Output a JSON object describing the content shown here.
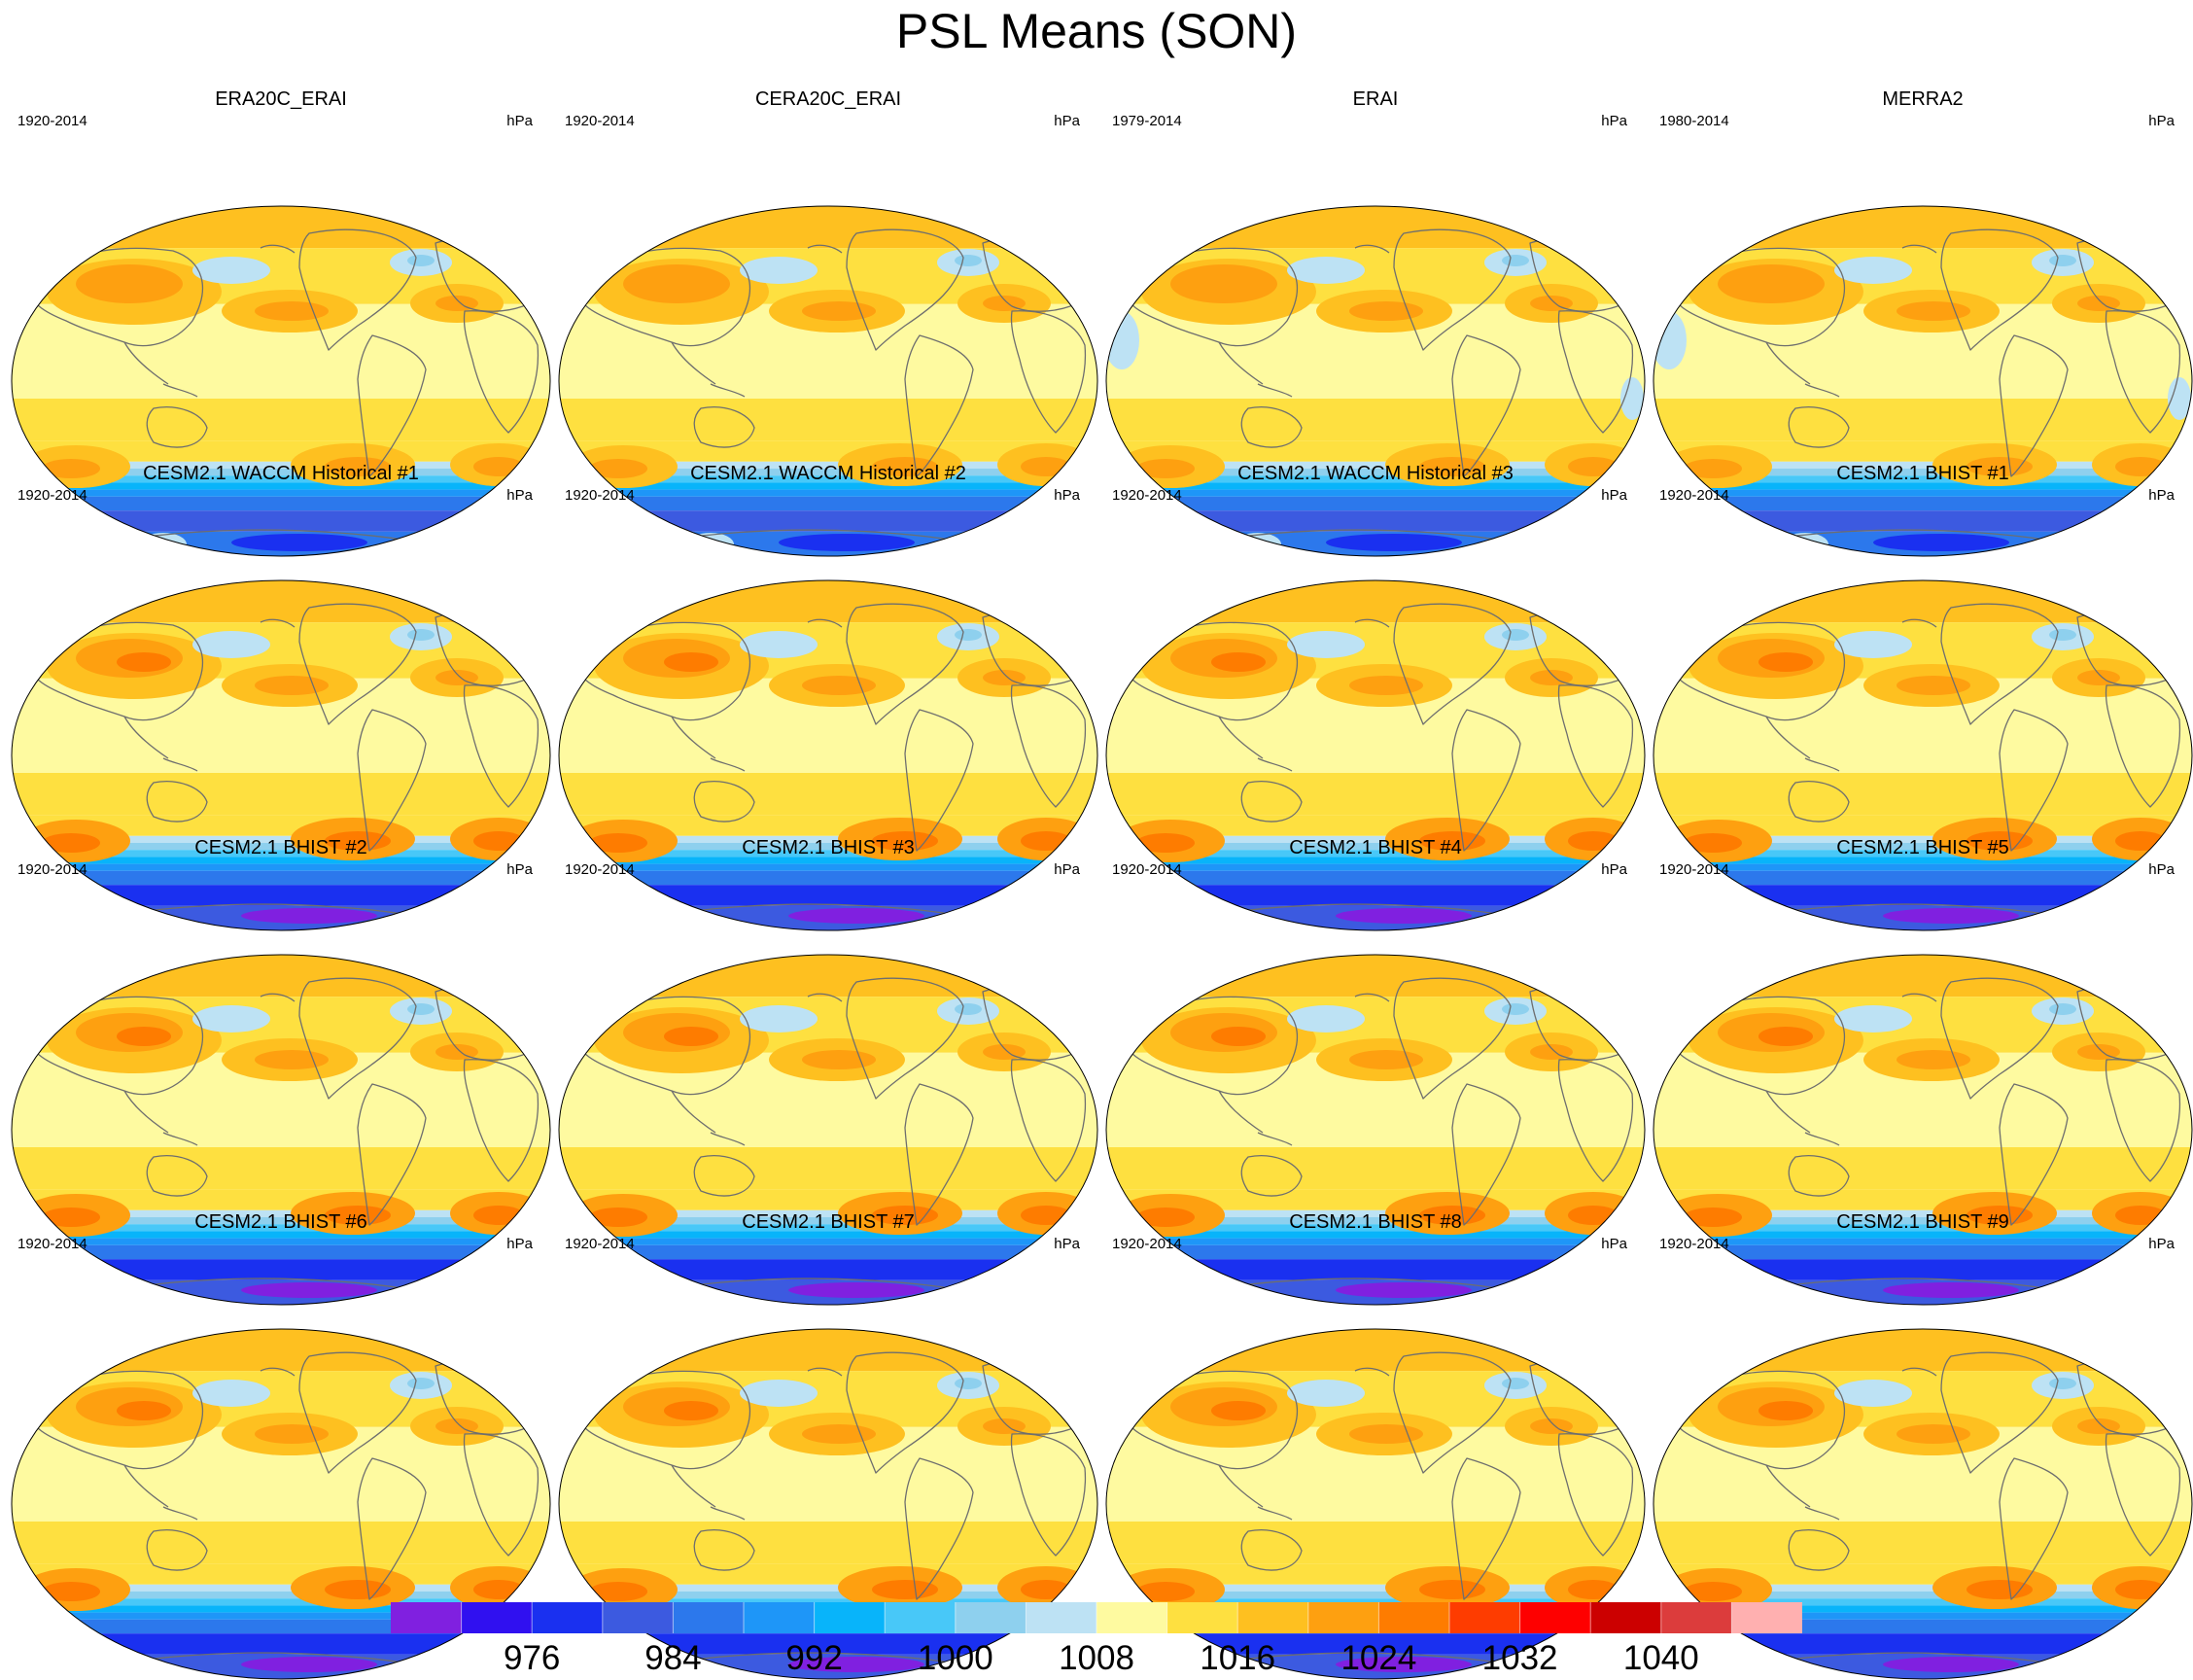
{
  "title": "PSL Means (SON)",
  "units": "hPa",
  "panels": [
    {
      "name": "ERA20C_ERAI",
      "period": "1920-2014",
      "kind": "obs_a"
    },
    {
      "name": "CERA20C_ERAI",
      "period": "1920-2014",
      "kind": "obs_a"
    },
    {
      "name": "ERAI",
      "period": "1979-2014",
      "kind": "obs_b"
    },
    {
      "name": "MERRA2",
      "period": "1980-2014",
      "kind": "obs_b"
    },
    {
      "name": "CESM2.1 WACCM Historical #1",
      "period": "1920-2014",
      "kind": "model"
    },
    {
      "name": "CESM2.1 WACCM Historical #2",
      "period": "1920-2014",
      "kind": "model"
    },
    {
      "name": "CESM2.1 WACCM Historical #3",
      "period": "1920-2014",
      "kind": "model"
    },
    {
      "name": "CESM2.1 BHIST #1",
      "period": "1920-2014",
      "kind": "model"
    },
    {
      "name": "CESM2.1 BHIST #2",
      "period": "1920-2014",
      "kind": "model"
    },
    {
      "name": "CESM2.1 BHIST #3",
      "period": "1920-2014",
      "kind": "model"
    },
    {
      "name": "CESM2.1 BHIST #4",
      "period": "1920-2014",
      "kind": "model"
    },
    {
      "name": "CESM2.1 BHIST #5",
      "period": "1920-2014",
      "kind": "model"
    },
    {
      "name": "CESM2.1 BHIST #6",
      "period": "1920-2014",
      "kind": "model"
    },
    {
      "name": "CESM2.1 BHIST #7",
      "period": "1920-2014",
      "kind": "model"
    },
    {
      "name": "CESM2.1 BHIST #8",
      "period": "1920-2014",
      "kind": "model"
    },
    {
      "name": "CESM2.1 BHIST #9",
      "period": "1920-2014",
      "kind": "model"
    }
  ],
  "colorbar": {
    "colors": [
      "#8020e0",
      "#3010f0",
      "#1a30f0",
      "#3c5ae0",
      "#2c78ec",
      "#1e96f8",
      "#08b4fa",
      "#48c8f8",
      "#8ed0ee",
      "#bde2f4",
      "#fefaa0",
      "#fee040",
      "#fec020",
      "#fea010",
      "#fe7c00",
      "#fe3c00",
      "#fe0000",
      "#cc0000",
      "#dc3c3c",
      "#ffb0b0"
    ],
    "labels": [
      "976",
      "984",
      "992",
      "1000",
      "1008",
      "1016",
      "1024",
      "1032",
      "1040"
    ],
    "label_start_index": 2,
    "label_step": 2
  },
  "land_color": "#7a7a7a",
  "coast_color": "#6e6e6e"
}
